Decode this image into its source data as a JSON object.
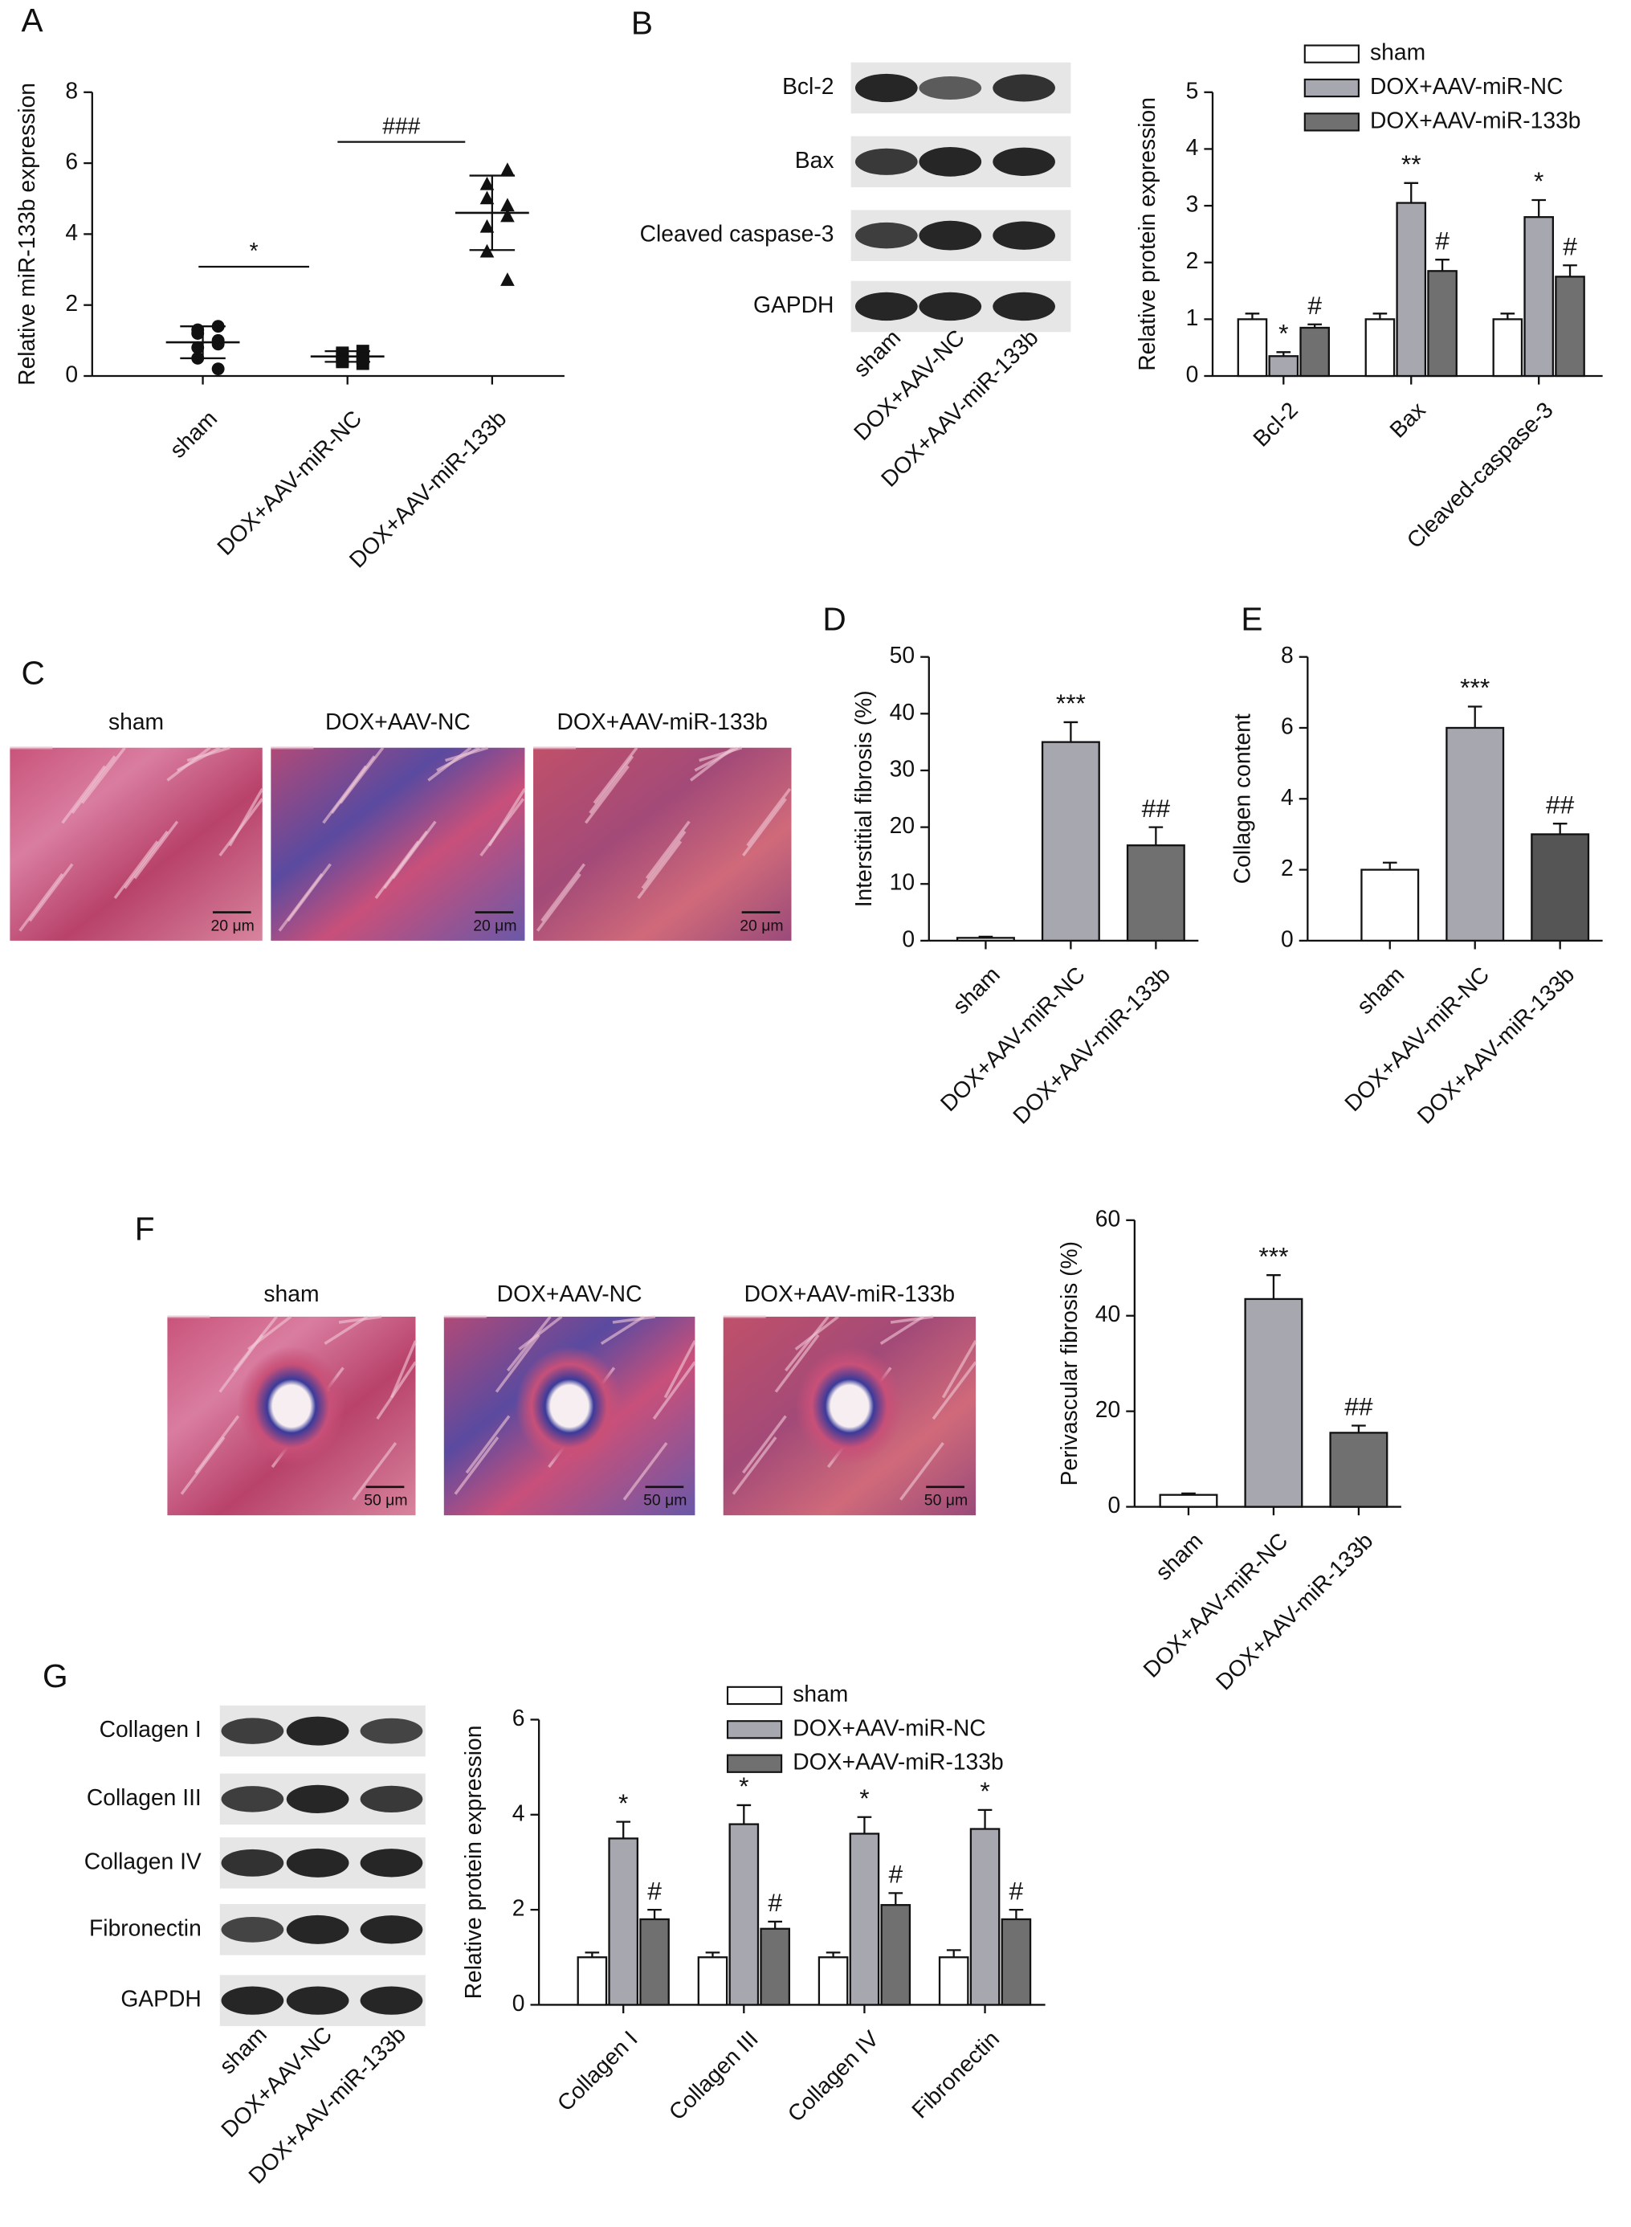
{
  "panel_labels": [
    "A",
    "B",
    "C",
    "D",
    "E",
    "F",
    "G"
  ],
  "blots": [
    {
      "rows": [
        "Bcl-2",
        "Bax",
        "Cleaved caspase-3",
        "GAPDH"
      ],
      "lanes": [
        "sham",
        "DOX+AAV-NC",
        "DOX+AAV-miR-133b"
      ]
    },
    {
      "rows": [
        "Collagen I",
        "Collagen III",
        "Collagen IV",
        "Fibronectin",
        "GAPDH"
      ],
      "lanes": [
        "sham",
        "DOX+AAV-NC",
        "DOX+AAV-miR-133b"
      ]
    }
  ],
  "histology": [
    {
      "groups": [
        "sham",
        "DOX+AAV-NC",
        "DOX+AAV-miR-133b"
      ],
      "scale_bar": "20 μm"
    },
    {
      "groups": [
        "sham",
        "DOX+AAV-NC",
        "DOX+AAV-miR-133b"
      ],
      "scale_bar": "50 μm"
    }
  ],
  "chart_data": [
    {
      "type": "dot",
      "ylabel": "Relative miR-133b expression",
      "categories": [
        "sham",
        "DOX+AAV-miR-NC",
        "DOX+AAV-miR-133b"
      ],
      "markers": [
        "circle",
        "square",
        "triangle"
      ],
      "points": [
        [
          1.4,
          1.3,
          1.2,
          1.0,
          0.9,
          0.8,
          0.5,
          0.2
        ],
        [
          0.7,
          0.65,
          0.6,
          0.55,
          0.5,
          0.45,
          0.4,
          0.35
        ],
        [
          5.8,
          5.4,
          5.0,
          4.8,
          4.5,
          4.2,
          3.5,
          2.7
        ]
      ],
      "means": [
        0.95,
        0.55,
        4.6
      ],
      "sd": [
        0.45,
        0.15,
        1.05
      ],
      "annotations": [
        "*",
        "###"
      ],
      "ylim": [
        0,
        8
      ],
      "yticks": [
        0,
        2,
        4,
        6,
        8
      ]
    },
    {
      "type": "bar",
      "ylabel": "Relative protein expression",
      "categories": [
        "Bcl-2",
        "Bax",
        "Cleaved-caspase-3"
      ],
      "series": [
        {
          "name": "sham",
          "color": "#ffffff",
          "values": [
            1,
            1,
            1
          ],
          "errors": [
            0.1,
            0.1,
            0.1
          ],
          "significance": [
            null,
            null,
            null
          ]
        },
        {
          "name": "DOX+AAV-miR-NC",
          "color": "#a7a7b0",
          "values": [
            0.35,
            3.05,
            2.8
          ],
          "errors": [
            0.07,
            0.35,
            0.3
          ],
          "significance": [
            "*",
            "**",
            "*"
          ]
        },
        {
          "name": "DOX+AAV-miR-133b",
          "color": "#707070",
          "values": [
            0.85,
            1.85,
            1.75
          ],
          "errors": [
            0.06,
            0.2,
            0.2
          ],
          "significance": [
            "#",
            "#",
            "#"
          ]
        }
      ],
      "ylim": [
        0,
        5
      ],
      "yticks": [
        0,
        1,
        2,
        3,
        4,
        5
      ]
    },
    {
      "type": "bar",
      "ylabel": "Interstitial fibrosis (%)",
      "categories": [
        "sham",
        "DOX+AAV-miR-NC",
        "DOX+AAV-miR-133b"
      ],
      "values": [
        0.5,
        35,
        16.8
      ],
      "errors": [
        0.2,
        3.5,
        3.2
      ],
      "significance": [
        null,
        "***",
        "##"
      ],
      "colors": [
        "#ffffff",
        "#a7a7b0",
        "#707070"
      ],
      "ylim": [
        0,
        50
      ],
      "yticks": [
        0,
        10,
        20,
        30,
        40,
        50
      ]
    },
    {
      "type": "bar",
      "ylabel": "Collagen content",
      "categories": [
        "sham",
        "DOX+AAV-miR-NC",
        "DOX+AAV-miR-133b"
      ],
      "values": [
        2,
        6,
        3
      ],
      "errors": [
        0.2,
        0.6,
        0.3
      ],
      "significance": [
        null,
        "***",
        "##"
      ],
      "colors": [
        "#ffffff",
        "#a7a7b0",
        "#555555"
      ],
      "ylim": [
        0,
        8
      ],
      "yticks": [
        0,
        2,
        4,
        6,
        8
      ]
    },
    {
      "type": "bar",
      "ylabel": "Perivascular fibrosis (%)",
      "categories": [
        "sham",
        "DOX+AAV-miR-NC",
        "DOX+AAV-miR-133b"
      ],
      "values": [
        2.5,
        43.5,
        15.5
      ],
      "errors": [
        0.3,
        5,
        1.5
      ],
      "significance": [
        null,
        "***",
        "##"
      ],
      "colors": [
        "#ffffff",
        "#a7a7b0",
        "#707070"
      ],
      "ylim": [
        0,
        60
      ],
      "yticks": [
        0,
        20,
        40,
        60
      ]
    },
    {
      "type": "bar",
      "ylabel": "Relative protein expression",
      "categories": [
        "Collagen I",
        "Collagen III",
        "Collagen IV",
        "Fibronectin"
      ],
      "series": [
        {
          "name": "sham",
          "color": "#ffffff",
          "values": [
            1,
            1,
            1,
            1
          ],
          "errors": [
            0.1,
            0.1,
            0.1,
            0.15
          ],
          "significance": [
            null,
            null,
            null,
            null
          ]
        },
        {
          "name": "DOX+AAV-miR-NC",
          "color": "#a7a7b0",
          "values": [
            3.5,
            3.8,
            3.6,
            3.7
          ],
          "errors": [
            0.35,
            0.4,
            0.35,
            0.4
          ],
          "significance": [
            "*",
            "*",
            "*",
            "*"
          ]
        },
        {
          "name": "DOX+AAV-miR-133b",
          "color": "#707070",
          "values": [
            1.8,
            1.6,
            2.1,
            1.8
          ],
          "errors": [
            0.2,
            0.15,
            0.25,
            0.2
          ],
          "significance": [
            "#",
            "#",
            "#",
            "#"
          ]
        }
      ],
      "ylim": [
        0,
        6
      ],
      "yticks": [
        0,
        2,
        4,
        6
      ]
    }
  ]
}
